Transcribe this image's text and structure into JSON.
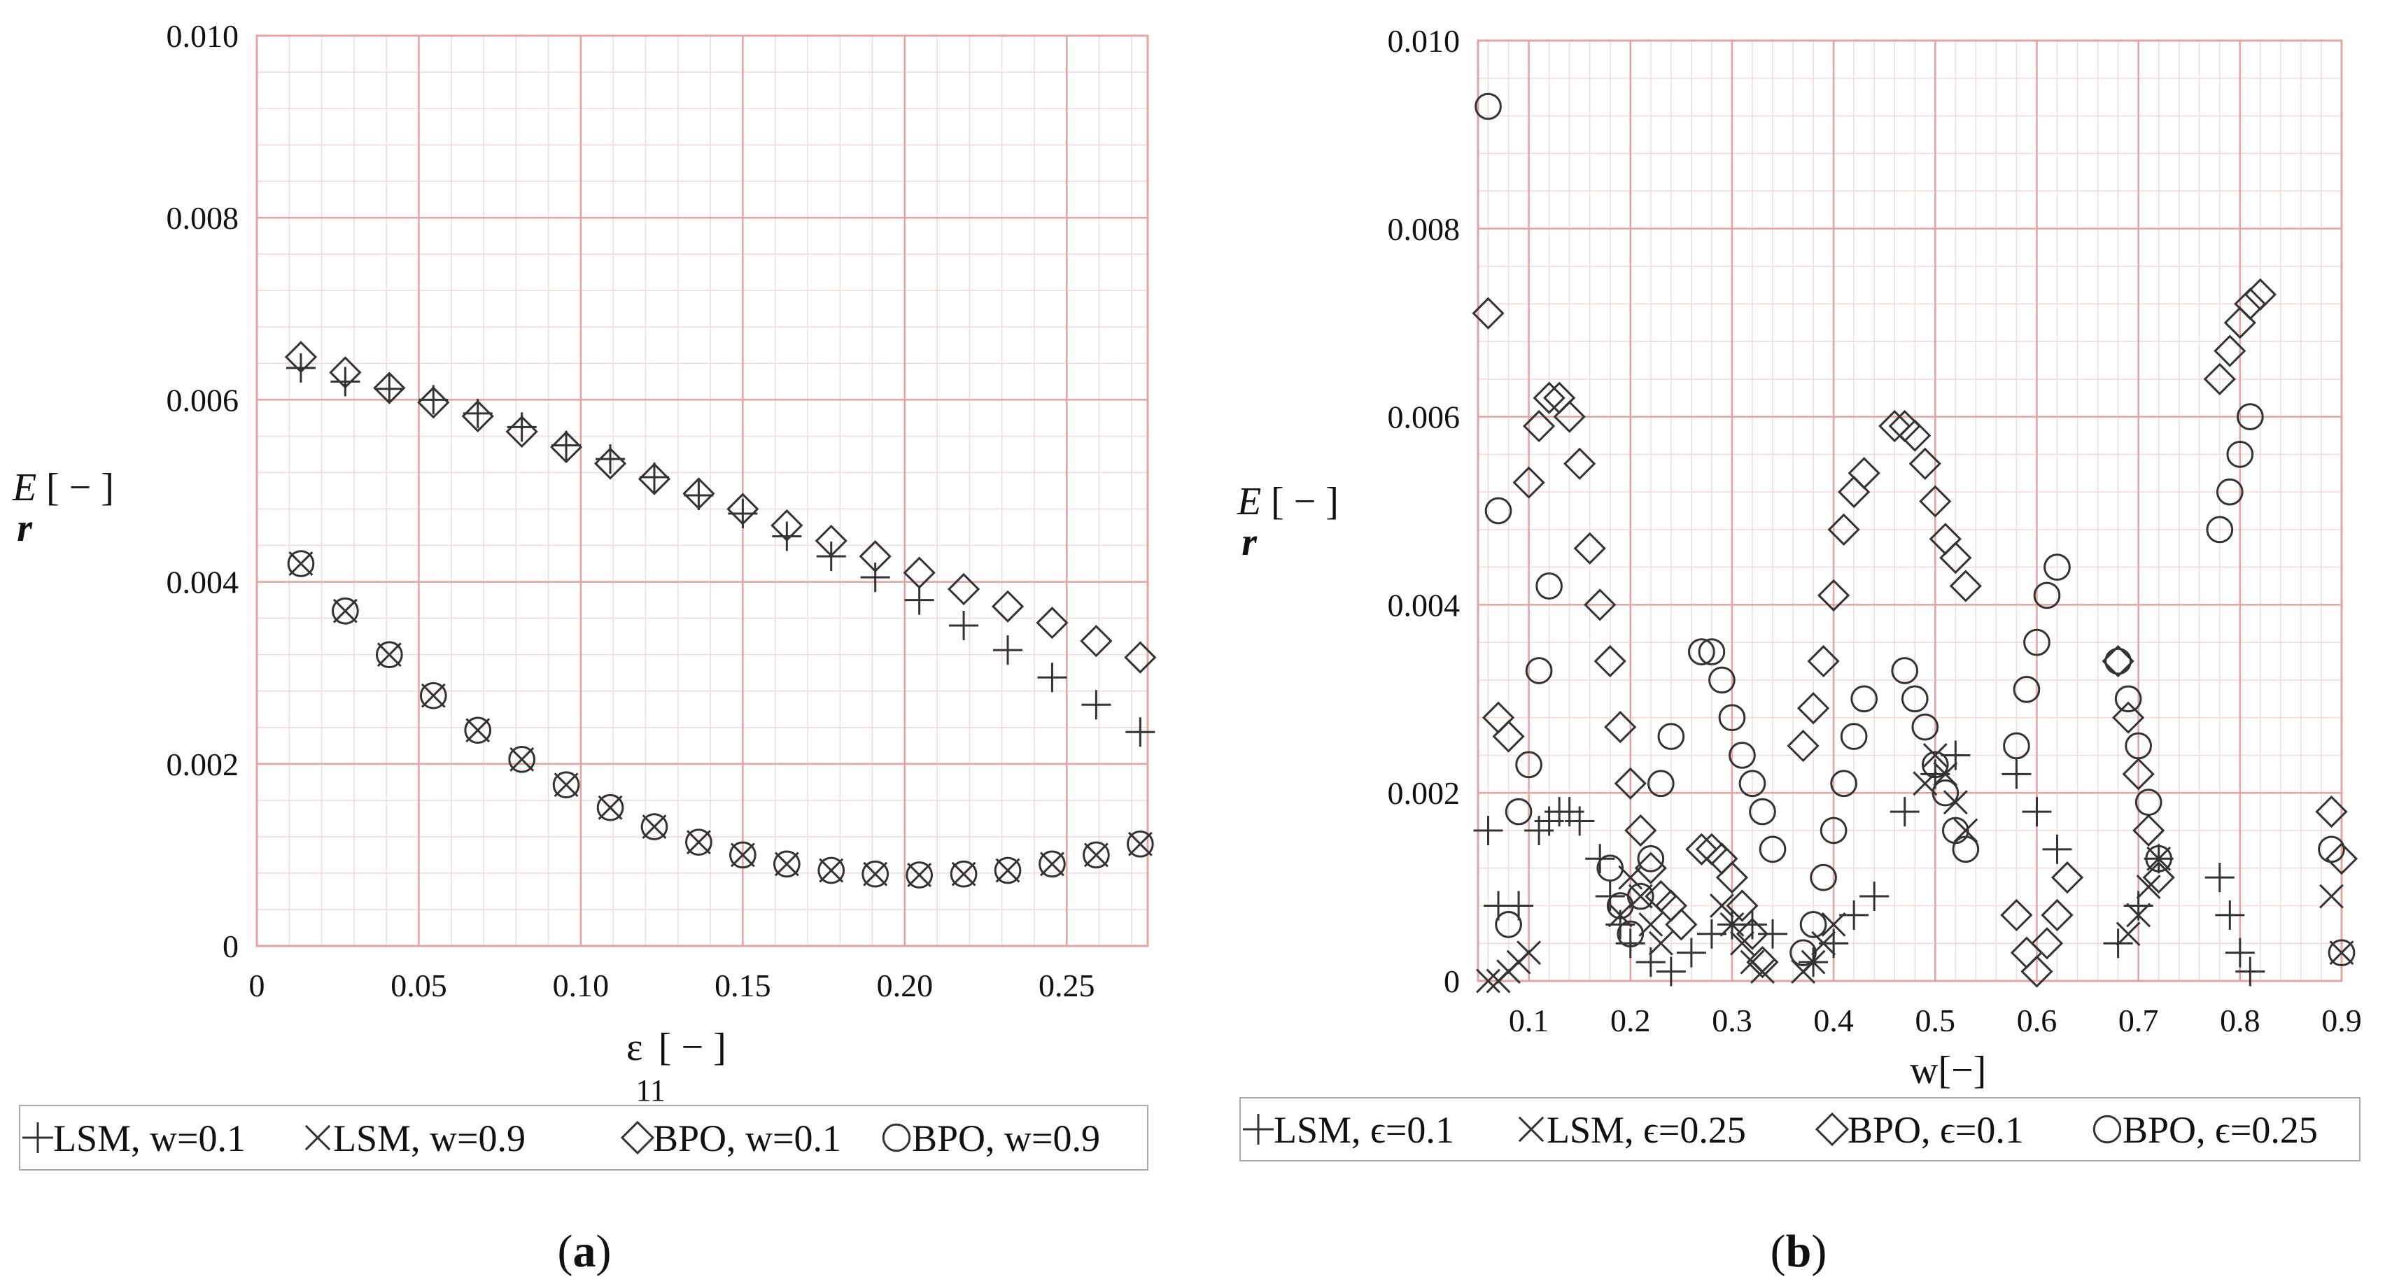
{
  "chart_data": [
    {
      "type": "scatter",
      "panel": "a",
      "caption": "a",
      "title": "",
      "xlabel": "ε",
      "xlabel_sub": "11",
      "xlabel_unit": "[ − ]",
      "ylabel": "E",
      "ylabel_sub": "r",
      "ylabel_unit": "[ − ]",
      "xlim": [
        0,
        0.275
      ],
      "ylim": [
        0,
        0.01
      ],
      "xticks": [
        0,
        0.05,
        0.1,
        0.15,
        0.2,
        0.25
      ],
      "xtick_labels": [
        "0",
        "0.05",
        "0.10",
        "0.15",
        "0.20",
        "0.25"
      ],
      "yticks": [
        0,
        0.002,
        0.004,
        0.006,
        0.008,
        0.01
      ],
      "ytick_labels": [
        "0",
        "0.002",
        "0.004",
        "0.006",
        "0.008",
        "0.010"
      ],
      "grid": true,
      "legend": "bottom",
      "series": [
        {
          "name": "LSM, w=0.1",
          "marker": "plus",
          "x": [
            0.0136,
            0.0273,
            0.0409,
            0.0545,
            0.0682,
            0.0818,
            0.0955,
            0.1091,
            0.1227,
            0.1364,
            0.15,
            0.1636,
            0.1773,
            0.1909,
            0.2045,
            0.2182,
            0.2318,
            0.2455,
            0.2591,
            0.2727
          ],
          "y": [
            0.00635,
            0.0062,
            0.00612,
            0.006,
            0.00585,
            0.0057,
            0.0055,
            0.00535,
            0.00515,
            0.00495,
            0.00475,
            0.0045,
            0.00428,
            0.00405,
            0.0038,
            0.00352,
            0.00325,
            0.00295,
            0.00265,
            0.00235
          ]
        },
        {
          "name": "LSM, w=0.9",
          "marker": "cross",
          "x": [
            0.0136,
            0.0273,
            0.0409,
            0.0545,
            0.0682,
            0.0818,
            0.0955,
            0.1091,
            0.1227,
            0.1364,
            0.15,
            0.1636,
            0.1773,
            0.1909,
            0.2045,
            0.2182,
            0.2318,
            0.2455,
            0.2591,
            0.2727
          ],
          "y": [
            0.0042,
            0.00368,
            0.0032,
            0.00275,
            0.00237,
            0.00205,
            0.00177,
            0.00152,
            0.00131,
            0.00114,
            0.001,
            0.0009,
            0.00083,
            0.00079,
            0.00078,
            0.00079,
            0.00083,
            0.0009,
            0.001,
            0.00112
          ]
        },
        {
          "name": "BPO, w=0.1",
          "marker": "diamond",
          "x": [
            0.0136,
            0.0273,
            0.0409,
            0.0545,
            0.0682,
            0.0818,
            0.0955,
            0.1091,
            0.1227,
            0.1364,
            0.15,
            0.1636,
            0.1773,
            0.1909,
            0.2045,
            0.2182,
            0.2318,
            0.2455,
            0.2591,
            0.2727
          ],
          "y": [
            0.00647,
            0.0063,
            0.00613,
            0.00597,
            0.00582,
            0.00565,
            0.00548,
            0.0053,
            0.00513,
            0.00497,
            0.0048,
            0.00462,
            0.00445,
            0.00428,
            0.0041,
            0.00392,
            0.00373,
            0.00355,
            0.00335,
            0.00317
          ]
        },
        {
          "name": "BPO, w=0.9",
          "marker": "circle",
          "x": [
            0.0136,
            0.0273,
            0.0409,
            0.0545,
            0.0682,
            0.0818,
            0.0955,
            0.1091,
            0.1227,
            0.1364,
            0.15,
            0.1636,
            0.1773,
            0.1909,
            0.2045,
            0.2182,
            0.2318,
            0.2455,
            0.2591,
            0.2727
          ],
          "y": [
            0.0042,
            0.00368,
            0.0032,
            0.00275,
            0.00237,
            0.00205,
            0.00177,
            0.00152,
            0.00131,
            0.00114,
            0.001,
            0.0009,
            0.00083,
            0.00079,
            0.00078,
            0.00079,
            0.00083,
            0.0009,
            0.001,
            0.00112
          ]
        }
      ]
    },
    {
      "type": "scatter",
      "panel": "b",
      "caption": "b",
      "title": "",
      "xlabel": "w[−]",
      "ylabel": "E",
      "ylabel_sub": "r",
      "ylabel_unit": "[ − ]",
      "xlim": [
        0.05,
        0.9
      ],
      "ylim": [
        0,
        0.01
      ],
      "xticks": [
        0.1,
        0.2,
        0.3,
        0.4,
        0.5,
        0.6,
        0.7,
        0.8,
        0.9
      ],
      "xtick_labels": [
        "0.1",
        "0.2",
        "0.3",
        "0.4",
        "0.5",
        "0.6",
        "0.7",
        "0.8",
        "0.9"
      ],
      "yticks": [
        0,
        0.002,
        0.004,
        0.006,
        0.008,
        0.01
      ],
      "ytick_labels": [
        "0",
        "0.002",
        "0.004",
        "0.006",
        "0.008",
        "0.010"
      ],
      "grid": true,
      "legend": "bottom",
      "series": [
        {
          "name": "LSM, ϵ=0.1",
          "marker": "plus",
          "x": [
            0.06,
            0.07,
            0.09,
            0.11,
            0.12,
            0.13,
            0.14,
            0.15,
            0.17,
            0.18,
            0.19,
            0.2,
            0.22,
            0.24,
            0.26,
            0.28,
            0.3,
            0.32,
            0.34,
            0.38,
            0.4,
            0.42,
            0.44,
            0.47,
            0.5,
            0.52,
            0.58,
            0.6,
            0.62,
            0.68,
            0.7,
            0.72,
            0.78,
            0.79,
            0.8,
            0.81
          ],
          "y": [
            0.0016,
            0.0008,
            0.0008,
            0.0016,
            0.0017,
            0.0018,
            0.0018,
            0.0017,
            0.0013,
            0.0009,
            0.0006,
            0.0004,
            0.0002,
            0.0001,
            0.0003,
            0.0005,
            0.0006,
            0.0006,
            0.0005,
            0.0002,
            0.0004,
            0.0007,
            0.0009,
            0.0018,
            0.0022,
            0.0024,
            0.0022,
            0.0018,
            0.0014,
            0.0004,
            0.0008,
            0.0013,
            0.0011,
            0.0007,
            0.0003,
            0.0001
          ]
        },
        {
          "name": "LSM, ϵ=0.25",
          "marker": "cross",
          "x": [
            0.06,
            0.07,
            0.08,
            0.09,
            0.1,
            0.19,
            0.2,
            0.21,
            0.22,
            0.23,
            0.29,
            0.3,
            0.31,
            0.32,
            0.33,
            0.37,
            0.38,
            0.39,
            0.4,
            0.49,
            0.5,
            0.51,
            0.52,
            0.53,
            0.69,
            0.7,
            0.71,
            0.72,
            0.89,
            0.9
          ],
          "y": [
            0.0,
            0.0,
            0.0001,
            0.0002,
            0.0003,
            0.0007,
            0.0011,
            0.0009,
            0.0006,
            0.0004,
            0.0008,
            0.0006,
            0.0004,
            0.0002,
            0.0001,
            0.0001,
            0.0002,
            0.0004,
            0.0006,
            0.0021,
            0.0024,
            0.0022,
            0.0019,
            0.0016,
            0.0005,
            0.0007,
            0.001,
            0.0013,
            0.0009,
            0.0003
          ]
        },
        {
          "name": "BPO, ϵ=0.1",
          "marker": "diamond",
          "x": [
            0.06,
            0.07,
            0.08,
            0.1,
            0.11,
            0.12,
            0.13,
            0.14,
            0.15,
            0.16,
            0.17,
            0.18,
            0.19,
            0.2,
            0.21,
            0.22,
            0.23,
            0.24,
            0.25,
            0.27,
            0.28,
            0.29,
            0.3,
            0.31,
            0.32,
            0.33,
            0.37,
            0.38,
            0.39,
            0.4,
            0.41,
            0.42,
            0.43,
            0.46,
            0.47,
            0.48,
            0.49,
            0.5,
            0.51,
            0.52,
            0.53,
            0.58,
            0.59,
            0.6,
            0.61,
            0.62,
            0.63,
            0.68,
            0.69,
            0.7,
            0.71,
            0.72,
            0.78,
            0.79,
            0.8,
            0.81,
            0.82,
            0.89,
            0.9
          ],
          "y": [
            0.0071,
            0.0028,
            0.0026,
            0.0053,
            0.0059,
            0.0062,
            0.0062,
            0.006,
            0.0055,
            0.0046,
            0.004,
            0.0034,
            0.0027,
            0.0021,
            0.0016,
            0.0012,
            0.0009,
            0.0008,
            0.0006,
            0.0014,
            0.0014,
            0.0013,
            0.0011,
            0.0008,
            0.0005,
            0.0002,
            0.0025,
            0.0029,
            0.0034,
            0.0041,
            0.0048,
            0.0052,
            0.0054,
            0.0059,
            0.0059,
            0.0058,
            0.0055,
            0.0051,
            0.0047,
            0.0045,
            0.0042,
            0.0007,
            0.0003,
            0.0001,
            0.0004,
            0.0007,
            0.0011,
            0.0034,
            0.0028,
            0.0022,
            0.0016,
            0.0011,
            0.0064,
            0.0067,
            0.007,
            0.0072,
            0.0073,
            0.0018,
            0.0013
          ]
        },
        {
          "name": "BPO, ϵ=0.25",
          "marker": "circle",
          "x": [
            0.06,
            0.07,
            0.08,
            0.09,
            0.1,
            0.11,
            0.12,
            0.18,
            0.19,
            0.2,
            0.21,
            0.22,
            0.23,
            0.24,
            0.27,
            0.28,
            0.29,
            0.3,
            0.31,
            0.32,
            0.33,
            0.34,
            0.37,
            0.38,
            0.39,
            0.4,
            0.41,
            0.42,
            0.43,
            0.47,
            0.48,
            0.49,
            0.5,
            0.51,
            0.52,
            0.53,
            0.58,
            0.59,
            0.6,
            0.61,
            0.62,
            0.68,
            0.69,
            0.7,
            0.71,
            0.72,
            0.78,
            0.79,
            0.8,
            0.81,
            0.89,
            0.9
          ],
          "y": [
            0.0093,
            0.005,
            0.0006,
            0.0018,
            0.0023,
            0.0033,
            0.0042,
            0.0012,
            0.0008,
            0.0005,
            0.0009,
            0.0013,
            0.0021,
            0.0026,
            0.0035,
            0.0035,
            0.0032,
            0.0028,
            0.0024,
            0.0021,
            0.0018,
            0.0014,
            0.0003,
            0.0006,
            0.0011,
            0.0016,
            0.0021,
            0.0026,
            0.003,
            0.0033,
            0.003,
            0.0027,
            0.0023,
            0.002,
            0.0016,
            0.0014,
            0.0025,
            0.0031,
            0.0036,
            0.0041,
            0.0044,
            0.0034,
            0.003,
            0.0025,
            0.0019,
            0.0013,
            0.0048,
            0.0052,
            0.0056,
            0.006,
            0.0014,
            0.0003
          ]
        }
      ]
    }
  ]
}
